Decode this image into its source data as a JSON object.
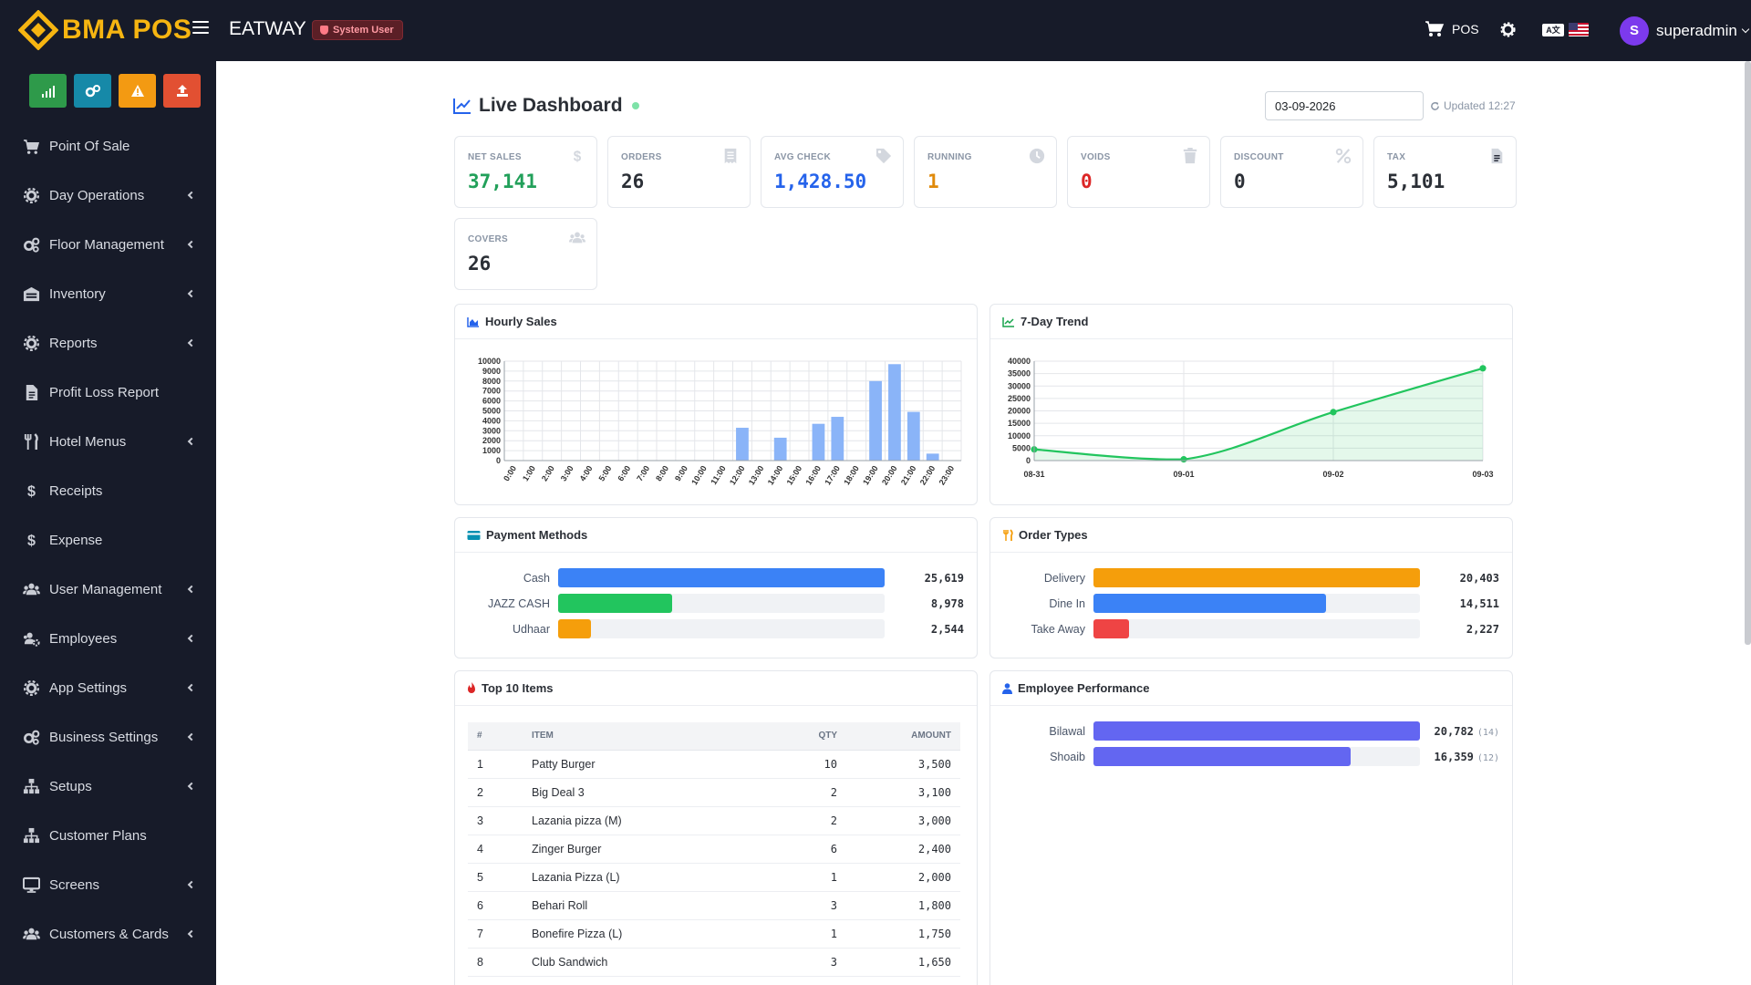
{
  "header": {
    "brand": "BMA POS",
    "company": "EATWAY",
    "role_badge": "System User",
    "pos_label": "POS",
    "user_initial": "S",
    "username": "superadmin"
  },
  "sidebar": {
    "items": [
      {
        "label": "Point Of Sale",
        "icon": "cart-icon",
        "submenu": false
      },
      {
        "label": "Day Operations",
        "icon": "gear-icon",
        "submenu": true
      },
      {
        "label": "Floor Management",
        "icon": "gears-icon",
        "submenu": true
      },
      {
        "label": "Inventory",
        "icon": "warehouse-icon",
        "submenu": true
      },
      {
        "label": "Reports",
        "icon": "cog-icon",
        "submenu": true
      },
      {
        "label": "Profit Loss Report",
        "icon": "file-icon",
        "submenu": false
      },
      {
        "label": "Hotel Menus",
        "icon": "utensils-icon",
        "submenu": true
      },
      {
        "label": "Receipts",
        "icon": "dollar-icon",
        "submenu": false
      },
      {
        "label": "Expense",
        "icon": "dollar-icon",
        "submenu": false
      },
      {
        "label": "User Management",
        "icon": "users-icon",
        "submenu": true
      },
      {
        "label": "Employees",
        "icon": "users-cog-icon",
        "submenu": true
      },
      {
        "label": "App Settings",
        "icon": "gear-icon",
        "submenu": true
      },
      {
        "label": "Business Settings",
        "icon": "gears-icon",
        "submenu": true
      },
      {
        "label": "Setups",
        "icon": "sitemap-icon",
        "submenu": true
      },
      {
        "label": "Customer Plans",
        "icon": "sitemap-icon",
        "submenu": false
      },
      {
        "label": "Screens",
        "icon": "desktop-icon",
        "submenu": true
      },
      {
        "label": "Customers & Cards",
        "icon": "users-icon",
        "submenu": true
      }
    ]
  },
  "dashboard": {
    "title": "Live Dashboard",
    "date_value": "03-09-2026",
    "updated_label": "Updated 12:27"
  },
  "stats": [
    {
      "label": "NET SALES",
      "value": "37,141",
      "color": "#22a05a",
      "icon": "dollar-icon"
    },
    {
      "label": "ORDERS",
      "value": "26",
      "color": "#2b2f36",
      "icon": "receipt-icon"
    },
    {
      "label": "AVG CHECK",
      "value": "1,428.50",
      "color": "#2563eb",
      "icon": "tag-icon"
    },
    {
      "label": "RUNNING",
      "value": "1",
      "color": "#e08a0b",
      "icon": "clock-icon"
    },
    {
      "label": "VOIDS",
      "value": "0",
      "color": "#dc2626",
      "icon": "trash-icon"
    },
    {
      "label": "DISCOUNT",
      "value": "0",
      "color": "#2b2f36",
      "icon": "percent-icon"
    },
    {
      "label": "TAX",
      "value": "5,101",
      "color": "#2b2f36",
      "icon": "file-icon"
    },
    {
      "label": "COVERS",
      "value": "26",
      "color": "#2b2f36",
      "icon": "users-icon"
    }
  ],
  "hourly_sales": {
    "title": "Hourly Sales"
  },
  "trend": {
    "title": "7-Day Trend"
  },
  "chart_data": [
    {
      "type": "bar",
      "title": "Hourly Sales",
      "categories": [
        "0:00",
        "1:00",
        "2:00",
        "3:00",
        "4:00",
        "5:00",
        "6:00",
        "7:00",
        "8:00",
        "9:00",
        "10:00",
        "11:00",
        "12:00",
        "13:00",
        "14:00",
        "15:00",
        "16:00",
        "17:00",
        "18:00",
        "19:00",
        "20:00",
        "21:00",
        "22:00",
        "23:00"
      ],
      "values": [
        0,
        0,
        0,
        0,
        0,
        0,
        0,
        0,
        0,
        0,
        0,
        0,
        3300,
        0,
        2300,
        0,
        3700,
        4400,
        0,
        8000,
        9700,
        4900,
        700,
        0
      ],
      "ylim": [
        0,
        10000
      ],
      "yticks": [
        0,
        1000,
        2000,
        3000,
        4000,
        5000,
        6000,
        7000,
        8000,
        9000,
        10000
      ],
      "grid": true,
      "color": "#8ab4f8"
    },
    {
      "type": "line",
      "title": "7-Day Trend",
      "x": [
        "08-31",
        "09-01",
        "09-02",
        "09-03"
      ],
      "values": [
        4500,
        500,
        19500,
        37141
      ],
      "ylim": [
        0,
        40000
      ],
      "yticks": [
        0,
        5000,
        10000,
        15000,
        20000,
        25000,
        30000,
        35000,
        40000
      ],
      "grid": true,
      "color": "#22c55e"
    }
  ],
  "payment_methods": {
    "title": "Payment Methods",
    "max": 25619,
    "rows": [
      {
        "label": "Cash",
        "value": 25619,
        "display": "25,619",
        "color": "#3b82f6"
      },
      {
        "label": "JAZZ CASH",
        "value": 8978,
        "display": "8,978",
        "color": "#22c55e"
      },
      {
        "label": "Udhaar",
        "value": 2544,
        "display": "2,544",
        "color": "#f59e0b"
      }
    ]
  },
  "order_types": {
    "title": "Order Types",
    "max": 20403,
    "rows": [
      {
        "label": "Delivery",
        "value": 20403,
        "display": "20,403",
        "color": "#f59e0b"
      },
      {
        "label": "Dine In",
        "value": 14511,
        "display": "14,511",
        "color": "#3b82f6"
      },
      {
        "label": "Take Away",
        "value": 2227,
        "display": "2,227",
        "color": "#ef4444"
      }
    ]
  },
  "top_items": {
    "title": "Top 10 Items",
    "columns": [
      "#",
      "ITEM",
      "QTY",
      "AMOUNT"
    ],
    "rows": [
      {
        "rank": "1",
        "item": "Patty Burger",
        "qty": "10",
        "amount": "3,500"
      },
      {
        "rank": "2",
        "item": "Big Deal 3",
        "qty": "2",
        "amount": "3,100"
      },
      {
        "rank": "3",
        "item": "Lazania pizza (M)",
        "qty": "2",
        "amount": "3,000"
      },
      {
        "rank": "4",
        "item": "Zinger Burger",
        "qty": "6",
        "amount": "2,400"
      },
      {
        "rank": "5",
        "item": "Lazania Pizza (L)",
        "qty": "1",
        "amount": "2,000"
      },
      {
        "rank": "6",
        "item": "Behari Roll",
        "qty": "3",
        "amount": "1,800"
      },
      {
        "rank": "7",
        "item": "Bonefire Pizza (L)",
        "qty": "1",
        "amount": "1,750"
      },
      {
        "rank": "8",
        "item": "Club Sandwich",
        "qty": "3",
        "amount": "1,650"
      }
    ]
  },
  "employee_performance": {
    "title": "Employee Performance",
    "max": 20782,
    "rows": [
      {
        "label": "Bilawal",
        "value": 20782,
        "display": "20,782",
        "count": "(14)",
        "color": "#6366f1"
      },
      {
        "label": "Shoaib",
        "value": 16359,
        "display": "16,359",
        "count": "(12)",
        "color": "#6366f1"
      }
    ]
  }
}
